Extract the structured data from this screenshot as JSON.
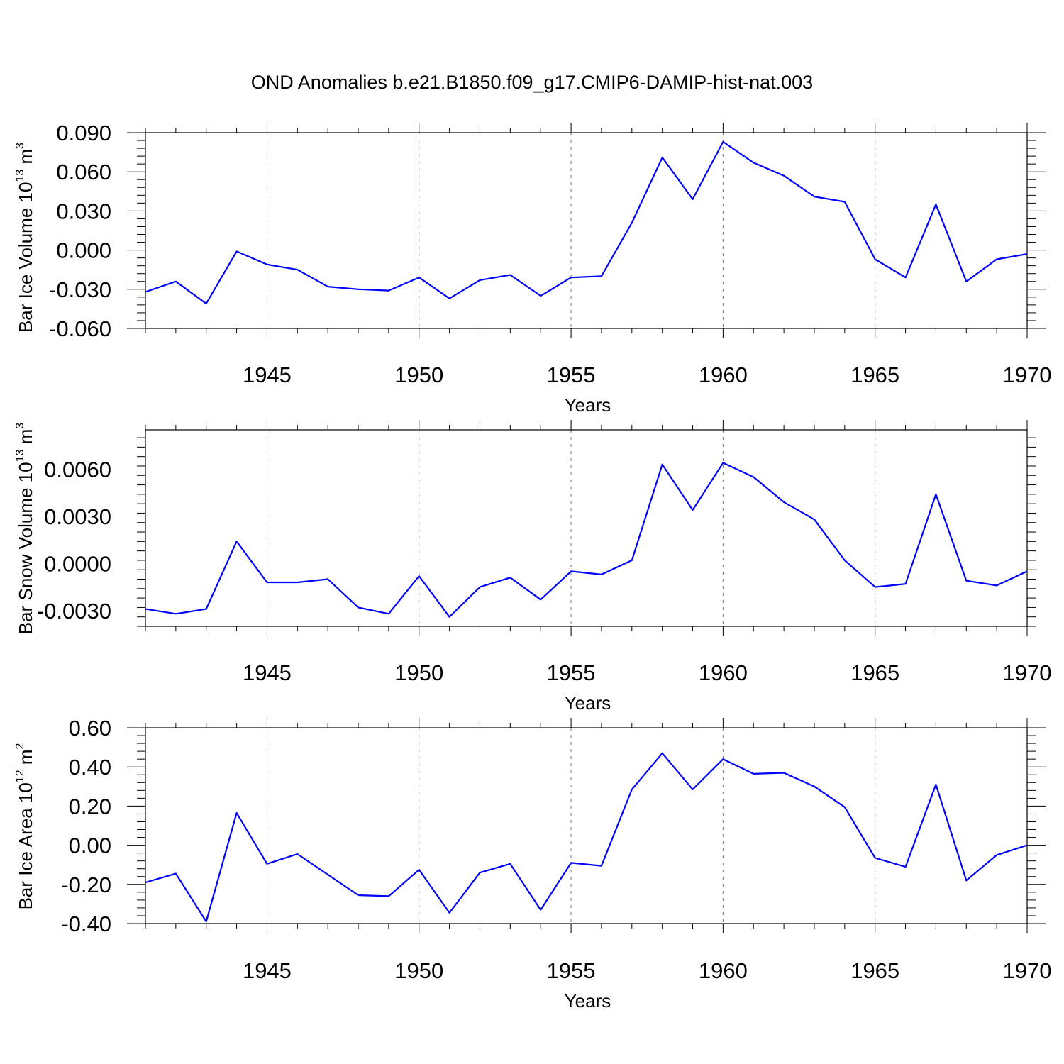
{
  "title": "OND Anomalies b.e21.B1850.f09_g17.CMIP6-DAMIP-hist-nat.003",
  "line_color": "#0000ff",
  "chart_data": [
    {
      "type": "line",
      "ylabel": "Bar Ice Volume 10",
      "ylabel_exp": "13",
      "ylabel_unit": " m",
      "ylabel_unit_exp": "3",
      "xlabel": "Years",
      "xlim": [
        1941,
        1970
      ],
      "ylim": [
        -0.06,
        0.09
      ],
      "x_ticks": [
        1945,
        1950,
        1955,
        1960,
        1965,
        1970
      ],
      "y_ticks": [
        -0.06,
        -0.03,
        0.0,
        0.03,
        0.06,
        0.09
      ],
      "y_tick_labels": [
        "-0.060",
        "-0.030",
        "0.000",
        "0.030",
        "0.060",
        "0.090"
      ],
      "grid": "dashed-vertical-at-major-x",
      "x": [
        1941,
        1942,
        1943,
        1944,
        1945,
        1946,
        1947,
        1948,
        1949,
        1950,
        1951,
        1952,
        1953,
        1954,
        1955,
        1956,
        1957,
        1958,
        1959,
        1960,
        1961,
        1962,
        1963,
        1964,
        1965,
        1966,
        1967,
        1968,
        1969,
        1970
      ],
      "values": [
        -0.032,
        -0.024,
        -0.041,
        -0.001,
        -0.011,
        -0.015,
        -0.028,
        -0.03,
        -0.031,
        -0.021,
        -0.037,
        -0.023,
        -0.019,
        -0.035,
        -0.021,
        -0.02,
        0.021,
        0.071,
        0.039,
        0.083,
        0.067,
        0.057,
        0.041,
        0.037,
        -0.007,
        -0.021,
        0.035,
        -0.024,
        -0.007,
        -0.003
      ]
    },
    {
      "type": "line",
      "ylabel": "Bar Snow Volume 10",
      "ylabel_exp": "13",
      "ylabel_unit": " m",
      "ylabel_unit_exp": "3",
      "xlabel": "Years",
      "xlim": [
        1941,
        1970
      ],
      "ylim": [
        -0.004,
        0.0085
      ],
      "x_ticks": [
        1945,
        1950,
        1955,
        1960,
        1965,
        1970
      ],
      "y_ticks": [
        -0.003,
        0.0,
        0.003,
        0.006
      ],
      "y_tick_labels": [
        "-0.0030",
        "0.0000",
        "0.0030",
        "0.0060"
      ],
      "grid": "dashed-vertical-at-major-x",
      "x": [
        1941,
        1942,
        1943,
        1944,
        1945,
        1946,
        1947,
        1948,
        1949,
        1950,
        1951,
        1952,
        1953,
        1954,
        1955,
        1956,
        1957,
        1958,
        1959,
        1960,
        1961,
        1962,
        1963,
        1964,
        1965,
        1966,
        1967,
        1968,
        1969,
        1970
      ],
      "values": [
        -0.0029,
        -0.0032,
        -0.0029,
        0.0014,
        -0.0012,
        -0.0012,
        -0.001,
        -0.0028,
        -0.0032,
        -0.0008,
        -0.0034,
        -0.0015,
        -0.0009,
        -0.0023,
        -0.0005,
        -0.0007,
        0.0002,
        0.0063,
        0.0034,
        0.0064,
        0.0055,
        0.0039,
        0.0028,
        0.0002,
        -0.0015,
        -0.0013,
        0.0044,
        -0.0011,
        -0.0014,
        -0.0005
      ]
    },
    {
      "type": "line",
      "ylabel": "Bar Ice Area 10",
      "ylabel_exp": "12",
      "ylabel_unit": " m",
      "ylabel_unit_exp": "2",
      "xlabel": "Years",
      "xlim": [
        1941,
        1970
      ],
      "ylim": [
        -0.4,
        0.6
      ],
      "x_ticks": [
        1945,
        1950,
        1955,
        1960,
        1965,
        1970
      ],
      "y_ticks": [
        -0.4,
        -0.2,
        0.0,
        0.2,
        0.4,
        0.6
      ],
      "y_tick_labels": [
        "-0.40",
        "-0.20",
        "0.00",
        "0.20",
        "0.40",
        "0.60"
      ],
      "grid": "dashed-vertical-at-major-x",
      "x": [
        1941,
        1942,
        1943,
        1944,
        1945,
        1946,
        1947,
        1948,
        1949,
        1950,
        1951,
        1952,
        1953,
        1954,
        1955,
        1956,
        1957,
        1958,
        1959,
        1960,
        1961,
        1962,
        1963,
        1964,
        1965,
        1966,
        1967,
        1968,
        1969,
        1970
      ],
      "values": [
        -0.19,
        -0.145,
        -0.39,
        0.165,
        -0.095,
        -0.045,
        -0.15,
        -0.255,
        -0.26,
        -0.125,
        -0.345,
        -0.14,
        -0.095,
        -0.33,
        -0.09,
        -0.105,
        0.285,
        0.47,
        0.285,
        0.44,
        0.365,
        0.37,
        0.3,
        0.195,
        -0.065,
        -0.11,
        0.31,
        -0.18,
        -0.05,
        0.0
      ]
    }
  ]
}
